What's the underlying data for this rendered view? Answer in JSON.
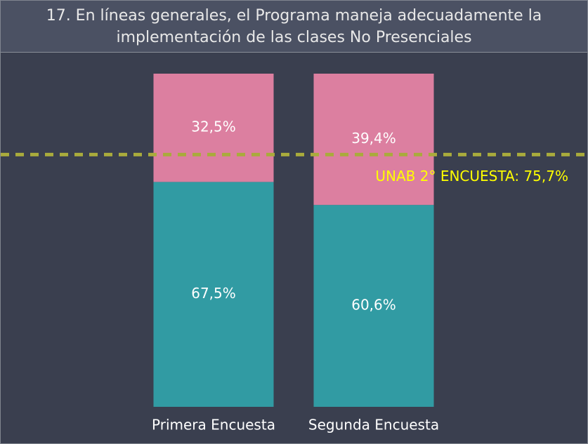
{
  "chart_data": {
    "type": "stacked_bar",
    "title": "17. En líneas generales, el Programa maneja adecuadamente la implementación de las clases No Presenciales",
    "categories": [
      "Primera Encuesta",
      "Segunda Encuesta"
    ],
    "series": [
      {
        "color": "#319ba3",
        "values": [
          67.5,
          60.6
        ],
        "value_labels": [
          "67,5%",
          "60,6%"
        ]
      },
      {
        "color": "#dc7fa0",
        "values": [
          32.5,
          39.4
        ],
        "value_labels": [
          "32,5%",
          "39,4%"
        ]
      }
    ],
    "ylim": [
      0,
      100
    ],
    "reference_line": {
      "value": 75.7,
      "label": "UNAB 2° ENCUESTA: 75,7%",
      "color": "#a9ab3c",
      "label_color": "#ffff00"
    }
  }
}
